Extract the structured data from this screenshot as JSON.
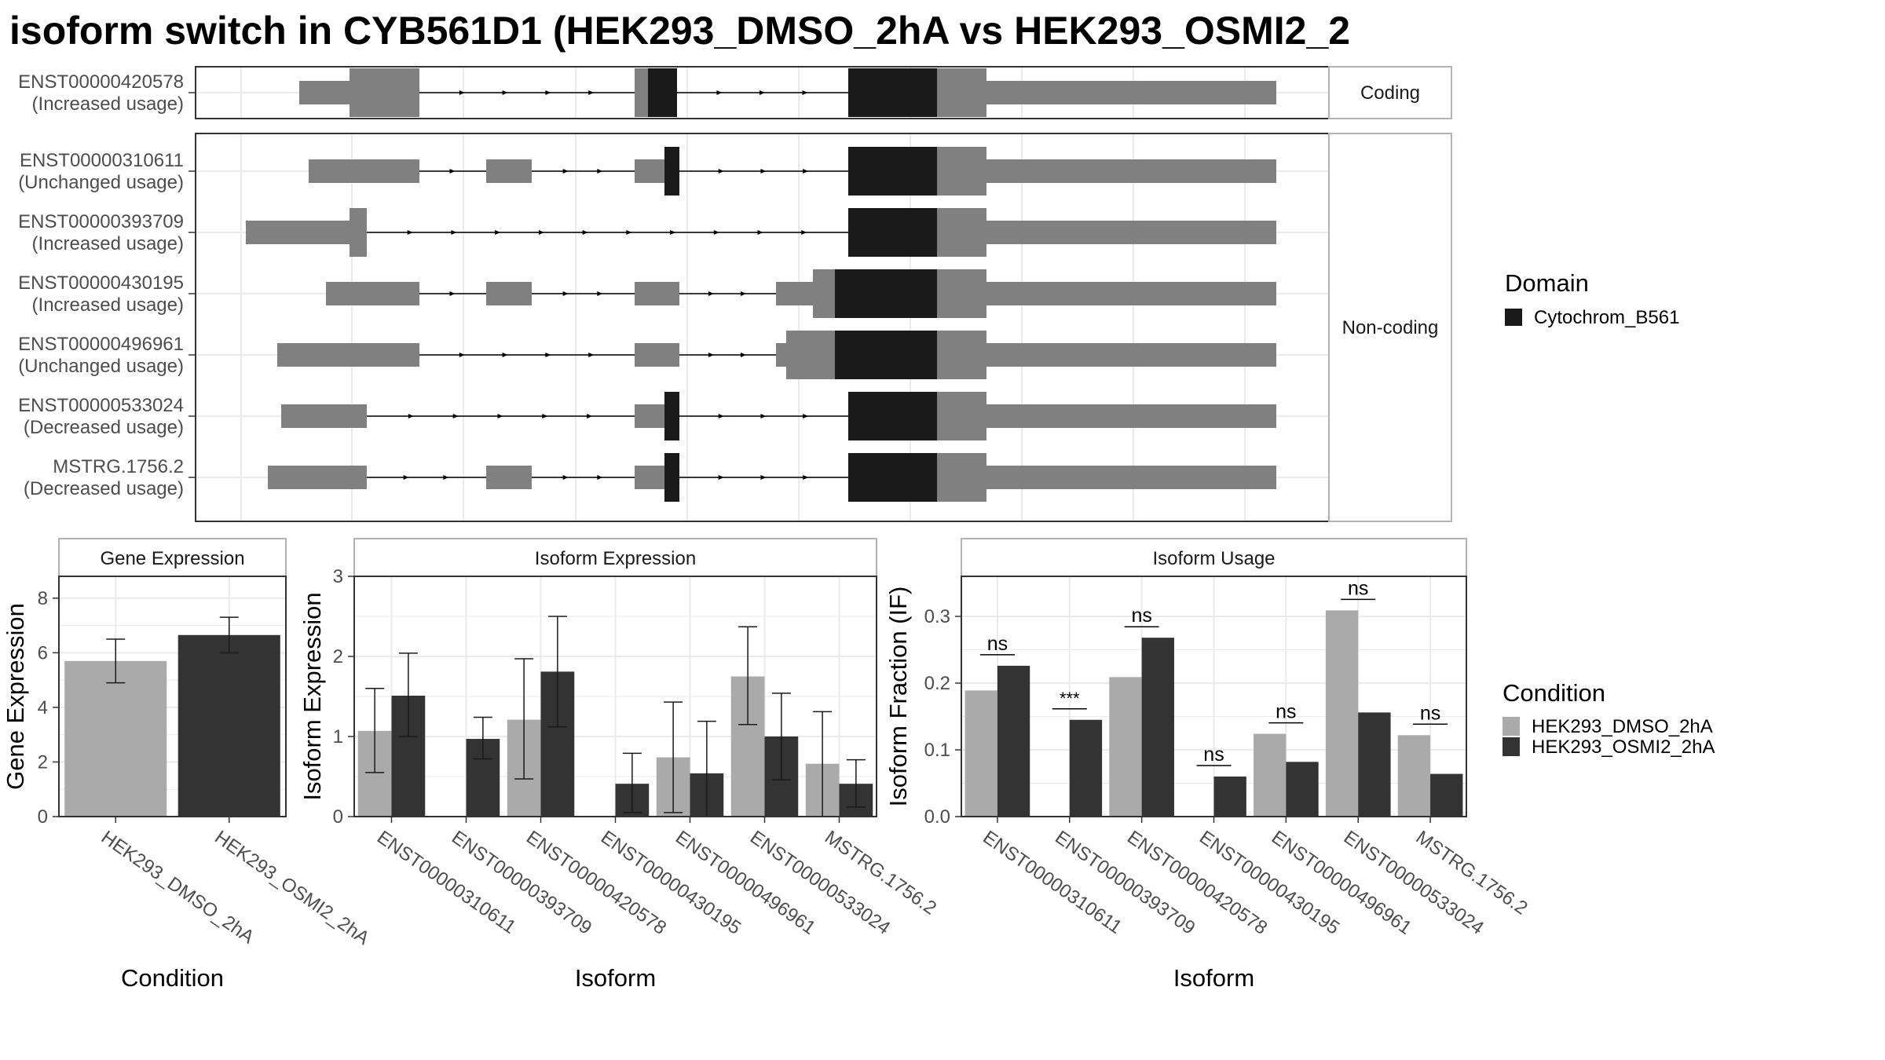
{
  "title": "isoform switch in CYB561D1 (HEK293_DMSO_2hA vs HEK293_OSMI2_2",
  "colors": {
    "utr": "#808080",
    "domain": "#1a1a1a",
    "dmso": "#aaaaaa",
    "osmi2": "#333333",
    "grid": "#ebebeb",
    "strip_bg": "#ffffff",
    "strip_border": "#b3b3b3",
    "panel_border": "#333333"
  },
  "facets": [
    "Coding",
    "Non-coding"
  ],
  "domain_legend": {
    "title": "Domain",
    "items": [
      {
        "label": "Cytochrom_B561",
        "color": "#1a1a1a"
      }
    ]
  },
  "condition_legend": {
    "title": "Condition",
    "items": [
      {
        "label": "HEK293_DMSO_2hA",
        "color": "#aaaaaa"
      },
      {
        "label": "HEK293_OSMI2_2hA",
        "color": "#333333"
      }
    ]
  },
  "isoforms": [
    {
      "id": "ENST00000420578",
      "usage": "(Increased usage)",
      "facet": "Coding"
    },
    {
      "id": "ENST00000310611",
      "usage": "(Unchanged usage)",
      "facet": "Non-coding"
    },
    {
      "id": "ENST00000393709",
      "usage": "(Increased usage)",
      "facet": "Non-coding"
    },
    {
      "id": "ENST00000430195",
      "usage": "(Increased usage)",
      "facet": "Non-coding"
    },
    {
      "id": "ENST00000496961",
      "usage": "(Unchanged usage)",
      "facet": "Non-coding"
    },
    {
      "id": "ENST00000533024",
      "usage": "(Decreased usage)",
      "facet": "Non-coding"
    },
    {
      "id": "MSTRG.1756.2",
      "usage": "(Decreased usage)",
      "facet": "Non-coding"
    }
  ],
  "chart_data": [
    {
      "type": "bar",
      "title": "Gene Expression",
      "xlabel": "Condition",
      "ylabel": "Gene Expression",
      "ylim": [
        0,
        8.8
      ],
      "yticks": [
        0,
        2,
        4,
        6,
        8
      ],
      "categories": [
        "HEK293_DMSO_2hA",
        "HEK293_OSMI2_2hA"
      ],
      "values": [
        5.7,
        6.65
      ],
      "err_low": [
        4.9,
        6.0
      ],
      "err_high": [
        6.5,
        7.3
      ]
    },
    {
      "type": "bar",
      "title": "Isoform Expression",
      "xlabel": "Isoform",
      "ylabel": "Isoform Expression",
      "ylim": [
        0,
        3.0
      ],
      "yticks": [
        0,
        1,
        2,
        3
      ],
      "categories": [
        "ENST00000310611",
        "ENST00000393709",
        "ENST00000420578",
        "ENST00000430195",
        "ENST00000496961",
        "ENST00000533024",
        "MSTRG.1756.2"
      ],
      "series": [
        {
          "name": "HEK293_DMSO_2hA",
          "values": [
            1.07,
            0.0,
            1.21,
            0.0,
            0.74,
            1.75,
            0.66
          ],
          "err_low": [
            0.55,
            0.0,
            0.47,
            0.0,
            0.05,
            1.15,
            0.0
          ],
          "err_high": [
            1.6,
            0.0,
            1.97,
            0.0,
            1.43,
            2.37,
            1.31
          ]
        },
        {
          "name": "HEK293_OSMI2_2hA",
          "values": [
            1.51,
            0.97,
            1.81,
            0.41,
            0.54,
            1.0,
            0.41
          ],
          "err_low": [
            1.0,
            0.72,
            1.12,
            0.05,
            0.0,
            0.46,
            0.12
          ],
          "err_high": [
            2.04,
            1.24,
            2.5,
            0.79,
            1.19,
            1.54,
            0.71
          ]
        }
      ]
    },
    {
      "type": "bar",
      "title": "Isoform Usage",
      "xlabel": "Isoform",
      "ylabel": "Isoform Fraction (IF)",
      "ylim": [
        0,
        0.36
      ],
      "yticks": [
        "0.0",
        "0.1",
        "0.2",
        "0.3"
      ],
      "categories": [
        "ENST00000310611",
        "ENST00000393709",
        "ENST00000420578",
        "ENST00000430195",
        "ENST00000496961",
        "ENST00000533024",
        "MSTRG.1756.2"
      ],
      "series": [
        {
          "name": "HEK293_DMSO_2hA",
          "values": [
            0.189,
            0.0,
            0.209,
            0.0,
            0.124,
            0.309,
            0.122
          ]
        },
        {
          "name": "HEK293_OSMI2_2hA",
          "values": [
            0.226,
            0.145,
            0.268,
            0.06,
            0.082,
            0.156,
            0.064
          ]
        }
      ],
      "significance": [
        "ns",
        "***",
        "ns",
        "ns",
        "ns",
        "ns",
        "ns"
      ]
    }
  ]
}
